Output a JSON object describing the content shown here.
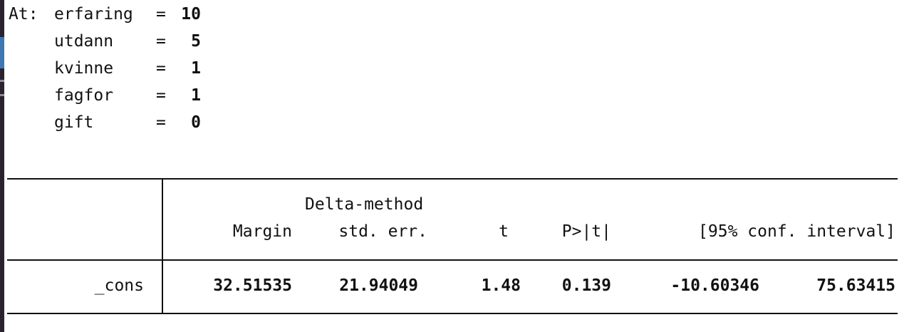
{
  "at_block": {
    "prefix": "At:",
    "rows": [
      {
        "name": "erfaring",
        "eq": "=",
        "value": "10"
      },
      {
        "name": "utdann",
        "eq": "=",
        "value": "5"
      },
      {
        "name": "kvinne",
        "eq": "=",
        "value": "1"
      },
      {
        "name": "fagfor",
        "eq": "=",
        "value": "1"
      },
      {
        "name": "gift",
        "eq": "=",
        "value": "0"
      }
    ]
  },
  "table": {
    "header_top": "Delta-method",
    "headers": [
      "Margin",
      "std. err.",
      "t",
      "P>|t|",
      "[95% conf. interval]"
    ],
    "row": {
      "label": "_cons",
      "margin": "32.51535",
      "std_err": "21.94049",
      "t": "1.48",
      "p": "0.139",
      "ci_low": "-10.60346",
      "ci_high": "75.63415"
    }
  }
}
